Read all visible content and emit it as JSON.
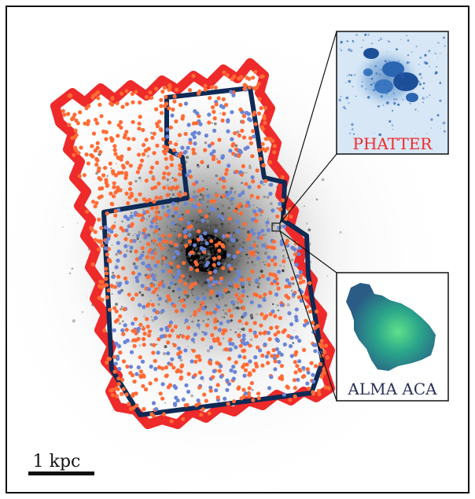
{
  "figure": {
    "scale_bar_label": "1 kpc",
    "inset_top_label": "PHATTER",
    "inset_bottom_label": "ALMA ACA"
  },
  "colors": {
    "phatter_footprint": "#ee2a2a",
    "alma_footprint": "#0e2a55",
    "phatter_points": "#ff6b35",
    "alma_points": "#6a85d6",
    "phatter_label": "#ee2a2a",
    "alma_label": "#2a2f5a",
    "frame": "#111111"
  }
}
